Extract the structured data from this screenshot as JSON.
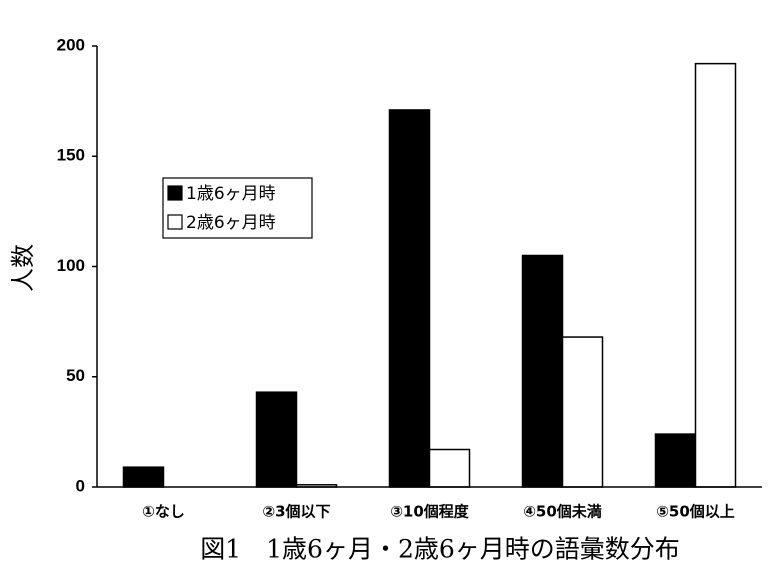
{
  "chart_data": {
    "type": "bar",
    "title": "図1　1歳6ヶ月・2歳6ヶ月時の語彙数分布",
    "y_label": "人数",
    "categories": [
      "①なし",
      "②3個以下",
      "③10個程度",
      "④50個未満",
      "⑤50個以上"
    ],
    "series": [
      {
        "name": "1歳6ヶ月時",
        "color": "#000000",
        "values": [
          9,
          43,
          171,
          105,
          24
        ]
      },
      {
        "name": "2歳6ヶ月時",
        "color": "#ffffff",
        "values": [
          0,
          1,
          17,
          68,
          192
        ]
      }
    ],
    "ylim": [
      0,
      200
    ],
    "yticks": [
      0,
      50,
      100,
      150,
      200
    ],
    "grid": false,
    "legend_position": "upper-left"
  }
}
